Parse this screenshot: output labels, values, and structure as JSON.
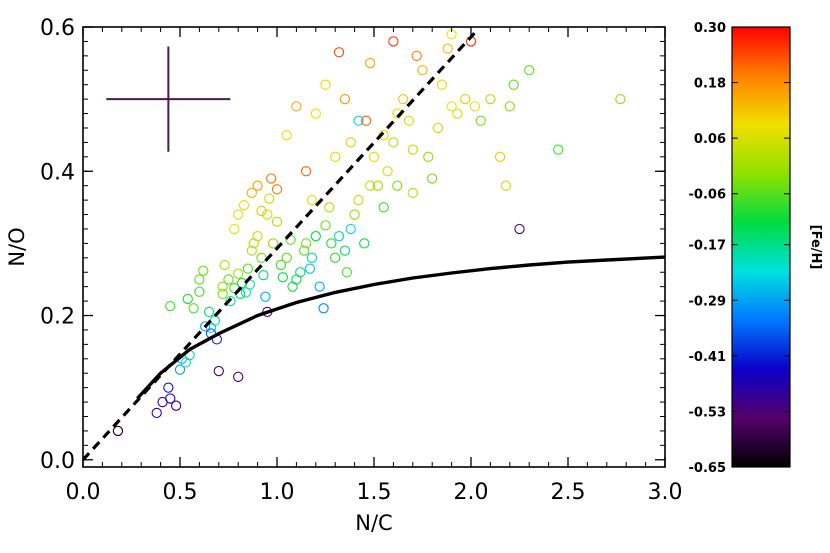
{
  "chart_data": {
    "type": "scatter",
    "xlabel": "N/C",
    "ylabel": "N/O",
    "xlim": [
      0.0,
      3.0
    ],
    "ylim": [
      -0.01,
      0.6
    ],
    "x_ticks": [
      0.0,
      0.5,
      1.0,
      1.5,
      2.0,
      2.5,
      3.0
    ],
    "x_tick_labels": [
      "0.0",
      "0.5",
      "1.0",
      "1.5",
      "2.0",
      "2.5",
      "3.0"
    ],
    "y_ticks": [
      0.0,
      0.2,
      0.4,
      0.6
    ],
    "y_tick_labels": [
      "0.0",
      "0.2",
      "0.4",
      "0.6"
    ],
    "grid": false,
    "marker": "open-circle",
    "colorbar": {
      "label": "[Fe/H]",
      "range": [
        -0.65,
        0.3
      ],
      "tick_values": [
        0.3,
        0.18,
        0.06,
        -0.06,
        -0.17,
        -0.29,
        -0.41,
        -0.53,
        -0.65
      ],
      "tick_labels": [
        "0.30",
        "0.18",
        "0.06",
        "-0.06",
        "-0.17",
        "-0.29",
        "-0.41",
        "-0.53",
        "-0.65"
      ],
      "colormap": [
        "#000000",
        "#55006a",
        "#0a00c8",
        "#0078ff",
        "#00e0e0",
        "#00dc40",
        "#90e000",
        "#f0e000",
        "#ff8000",
        "#ff0000"
      ]
    },
    "error_bar": {
      "x": 0.44,
      "y": 0.5,
      "x_halfwidth": 0.32,
      "y_halfwidth": 0.073,
      "color": "#4b1a4f"
    },
    "lines": [
      {
        "style": "dashed",
        "color": "#000000",
        "x": [
          0.0,
          2.03
        ],
        "y": [
          0.0,
          0.595
        ]
      },
      {
        "style": "solid",
        "color": "#000000",
        "x": [
          0.28,
          0.4,
          0.55,
          0.7,
          0.9,
          1.1,
          1.3,
          1.5,
          1.7,
          1.9,
          2.1,
          2.3,
          2.5,
          2.7,
          3.0
        ],
        "y": [
          0.085,
          0.12,
          0.153,
          0.175,
          0.2,
          0.218,
          0.232,
          0.243,
          0.252,
          0.259,
          0.265,
          0.27,
          0.274,
          0.277,
          0.281
        ]
      }
    ],
    "points": [
      {
        "x": 0.18,
        "y": 0.04,
        "feh": -0.62
      },
      {
        "x": 0.38,
        "y": 0.065,
        "feh": -0.47
      },
      {
        "x": 0.41,
        "y": 0.08,
        "feh": -0.51
      },
      {
        "x": 0.45,
        "y": 0.085,
        "feh": -0.45
      },
      {
        "x": 0.48,
        "y": 0.075,
        "feh": -0.5
      },
      {
        "x": 0.44,
        "y": 0.1,
        "feh": -0.42
      },
      {
        "x": 0.5,
        "y": 0.125,
        "feh": -0.3
      },
      {
        "x": 0.51,
        "y": 0.14,
        "feh": -0.27
      },
      {
        "x": 0.53,
        "y": 0.135,
        "feh": -0.22
      },
      {
        "x": 0.55,
        "y": 0.145,
        "feh": -0.18
      },
      {
        "x": 0.7,
        "y": 0.123,
        "feh": -0.55
      },
      {
        "x": 0.8,
        "y": 0.115,
        "feh": -0.52
      },
      {
        "x": 0.45,
        "y": 0.213,
        "feh": -0.08
      },
      {
        "x": 0.54,
        "y": 0.223,
        "feh": -0.1
      },
      {
        "x": 0.57,
        "y": 0.21,
        "feh": -0.06
      },
      {
        "x": 0.6,
        "y": 0.25,
        "feh": -0.05
      },
      {
        "x": 0.62,
        "y": 0.262,
        "feh": -0.04
      },
      {
        "x": 0.6,
        "y": 0.233,
        "feh": -0.08
      },
      {
        "x": 0.63,
        "y": 0.185,
        "feh": -0.3
      },
      {
        "x": 0.66,
        "y": 0.183,
        "feh": -0.25
      },
      {
        "x": 0.68,
        "y": 0.193,
        "feh": -0.2
      },
      {
        "x": 0.65,
        "y": 0.205,
        "feh": -0.15
      },
      {
        "x": 0.66,
        "y": 0.175,
        "feh": -0.36
      },
      {
        "x": 0.69,
        "y": 0.167,
        "feh": -0.4
      },
      {
        "x": 0.72,
        "y": 0.23,
        "feh": -0.03
      },
      {
        "x": 0.72,
        "y": 0.24,
        "feh": -0.01
      },
      {
        "x": 0.73,
        "y": 0.27,
        "feh": 0.02
      },
      {
        "x": 0.75,
        "y": 0.25,
        "feh": -0.05
      },
      {
        "x": 0.76,
        "y": 0.22,
        "feh": -0.18
      },
      {
        "x": 0.78,
        "y": 0.238,
        "feh": -0.08
      },
      {
        "x": 0.8,
        "y": 0.258,
        "feh": 0.0
      },
      {
        "x": 0.81,
        "y": 0.23,
        "feh": -0.12
      },
      {
        "x": 0.82,
        "y": 0.245,
        "feh": -0.1
      },
      {
        "x": 0.84,
        "y": 0.232,
        "feh": -0.22
      },
      {
        "x": 0.85,
        "y": 0.265,
        "feh": -0.07
      },
      {
        "x": 0.86,
        "y": 0.243,
        "feh": -0.2
      },
      {
        "x": 0.87,
        "y": 0.29,
        "feh": 0.03
      },
      {
        "x": 0.88,
        "y": 0.3,
        "feh": 0.01
      },
      {
        "x": 0.9,
        "y": 0.31,
        "feh": 0.04
      },
      {
        "x": 0.92,
        "y": 0.28,
        "feh": -0.04
      },
      {
        "x": 0.93,
        "y": 0.256,
        "feh": -0.15
      },
      {
        "x": 0.94,
        "y": 0.226,
        "feh": -0.28
      },
      {
        "x": 0.95,
        "y": 0.205,
        "feh": -0.53
      },
      {
        "x": 0.78,
        "y": 0.32,
        "feh": 0.08
      },
      {
        "x": 0.8,
        "y": 0.34,
        "feh": 0.06
      },
      {
        "x": 0.83,
        "y": 0.353,
        "feh": 0.1
      },
      {
        "x": 0.87,
        "y": 0.37,
        "feh": 0.14
      },
      {
        "x": 0.9,
        "y": 0.38,
        "feh": 0.16
      },
      {
        "x": 0.95,
        "y": 0.34,
        "feh": 0.05
      },
      {
        "x": 0.96,
        "y": 0.362,
        "feh": 0.04
      },
      {
        "x": 0.98,
        "y": 0.3,
        "feh": -0.02
      },
      {
        "x": 1.0,
        "y": 0.33,
        "feh": 0.02
      },
      {
        "x": 1.02,
        "y": 0.27,
        "feh": -0.08
      },
      {
        "x": 1.03,
        "y": 0.253,
        "feh": -0.12
      },
      {
        "x": 1.05,
        "y": 0.28,
        "feh": -0.05
      },
      {
        "x": 1.07,
        "y": 0.305,
        "feh": -0.06
      },
      {
        "x": 1.08,
        "y": 0.24,
        "feh": -0.1
      },
      {
        "x": 1.1,
        "y": 0.25,
        "feh": -0.14
      },
      {
        "x": 1.12,
        "y": 0.26,
        "feh": -0.16
      },
      {
        "x": 1.14,
        "y": 0.29,
        "feh": -0.06
      },
      {
        "x": 1.15,
        "y": 0.3,
        "feh": -0.03
      },
      {
        "x": 1.17,
        "y": 0.265,
        "feh": -0.26
      },
      {
        "x": 1.18,
        "y": 0.28,
        "feh": -0.19
      },
      {
        "x": 1.2,
        "y": 0.31,
        "feh": -0.12
      },
      {
        "x": 1.22,
        "y": 0.24,
        "feh": -0.28
      },
      {
        "x": 1.24,
        "y": 0.21,
        "feh": -0.32
      },
      {
        "x": 1.25,
        "y": 0.325,
        "feh": -0.05
      },
      {
        "x": 1.27,
        "y": 0.35,
        "feh": 0.02
      },
      {
        "x": 1.28,
        "y": 0.3,
        "feh": -0.1
      },
      {
        "x": 1.3,
        "y": 0.28,
        "feh": -0.08
      },
      {
        "x": 1.32,
        "y": 0.31,
        "feh": -0.2
      },
      {
        "x": 1.35,
        "y": 0.29,
        "feh": -0.14
      },
      {
        "x": 1.36,
        "y": 0.26,
        "feh": -0.07
      },
      {
        "x": 1.38,
        "y": 0.32,
        "feh": -0.24
      },
      {
        "x": 1.4,
        "y": 0.34,
        "feh": -0.02
      },
      {
        "x": 1.42,
        "y": 0.36,
        "feh": 0.03
      },
      {
        "x": 1.45,
        "y": 0.3,
        "feh": -0.12
      },
      {
        "x": 1.48,
        "y": 0.38,
        "feh": 0.04
      },
      {
        "x": 1.5,
        "y": 0.42,
        "feh": 0.07
      },
      {
        "x": 1.52,
        "y": 0.38,
        "feh": 0.0
      },
      {
        "x": 1.55,
        "y": 0.45,
        "feh": 0.08
      },
      {
        "x": 1.57,
        "y": 0.4,
        "feh": 0.05
      },
      {
        "x": 1.6,
        "y": 0.44,
        "feh": 0.02
      },
      {
        "x": 1.62,
        "y": 0.48,
        "feh": 0.1
      },
      {
        "x": 1.65,
        "y": 0.5,
        "feh": 0.12
      },
      {
        "x": 1.68,
        "y": 0.47,
        "feh": 0.06
      },
      {
        "x": 1.7,
        "y": 0.43,
        "feh": 0.03
      },
      {
        "x": 1.72,
        "y": 0.56,
        "feh": 0.2
      },
      {
        "x": 1.75,
        "y": 0.54,
        "feh": 0.14
      },
      {
        "x": 1.78,
        "y": 0.42,
        "feh": -0.02
      },
      {
        "x": 1.8,
        "y": 0.39,
        "feh": -0.04
      },
      {
        "x": 1.83,
        "y": 0.46,
        "feh": 0.04
      },
      {
        "x": 1.85,
        "y": 0.52,
        "feh": 0.1
      },
      {
        "x": 1.88,
        "y": 0.57,
        "feh": 0.13
      },
      {
        "x": 1.9,
        "y": 0.49,
        "feh": 0.09
      },
      {
        "x": 1.93,
        "y": 0.48,
        "feh": 0.06
      },
      {
        "x": 1.97,
        "y": 0.5,
        "feh": 0.12
      },
      {
        "x": 2.0,
        "y": 0.58,
        "feh": 0.26
      },
      {
        "x": 2.02,
        "y": 0.49,
        "feh": 0.08
      },
      {
        "x": 2.05,
        "y": 0.47,
        "feh": -0.04
      },
      {
        "x": 2.1,
        "y": 0.5,
        "feh": 0.02
      },
      {
        "x": 2.15,
        "y": 0.42,
        "feh": 0.12
      },
      {
        "x": 2.18,
        "y": 0.38,
        "feh": 0.05
      },
      {
        "x": 2.2,
        "y": 0.49,
        "feh": -0.02
      },
      {
        "x": 2.22,
        "y": 0.52,
        "feh": -0.05
      },
      {
        "x": 2.25,
        "y": 0.32,
        "feh": -0.52
      },
      {
        "x": 2.45,
        "y": 0.43,
        "feh": -0.08
      },
      {
        "x": 2.77,
        "y": 0.5,
        "feh": -0.01
      },
      {
        "x": 1.32,
        "y": 0.565,
        "feh": 0.24
      },
      {
        "x": 1.6,
        "y": 0.58,
        "feh": 0.25
      },
      {
        "x": 1.48,
        "y": 0.55,
        "feh": 0.15
      },
      {
        "x": 1.25,
        "y": 0.52,
        "feh": 0.1
      },
      {
        "x": 1.1,
        "y": 0.49,
        "feh": 0.15
      },
      {
        "x": 1.2,
        "y": 0.48,
        "feh": 0.09
      },
      {
        "x": 1.35,
        "y": 0.5,
        "feh": 0.17
      },
      {
        "x": 1.05,
        "y": 0.45,
        "feh": 0.08
      },
      {
        "x": 1.42,
        "y": 0.47,
        "feh": -0.24
      },
      {
        "x": 1.46,
        "y": 0.47,
        "feh": 0.22
      },
      {
        "x": 1.15,
        "y": 0.4,
        "feh": 0.22
      },
      {
        "x": 1.38,
        "y": 0.44,
        "feh": 0.12
      },
      {
        "x": 0.97,
        "y": 0.39,
        "feh": 0.21
      },
      {
        "x": 1.0,
        "y": 0.375,
        "feh": 0.2
      },
      {
        "x": 0.92,
        "y": 0.345,
        "feh": 0.12
      },
      {
        "x": 1.18,
        "y": 0.36,
        "feh": 0.1
      },
      {
        "x": 1.3,
        "y": 0.42,
        "feh": 0.06
      },
      {
        "x": 1.55,
        "y": 0.35,
        "feh": -0.08
      },
      {
        "x": 1.62,
        "y": 0.38,
        "feh": -0.03
      },
      {
        "x": 1.7,
        "y": 0.37,
        "feh": 0.02
      },
      {
        "x": 1.9,
        "y": 0.59,
        "feh": 0.08
      },
      {
        "x": 2.3,
        "y": 0.54,
        "feh": -0.06
      }
    ]
  }
}
